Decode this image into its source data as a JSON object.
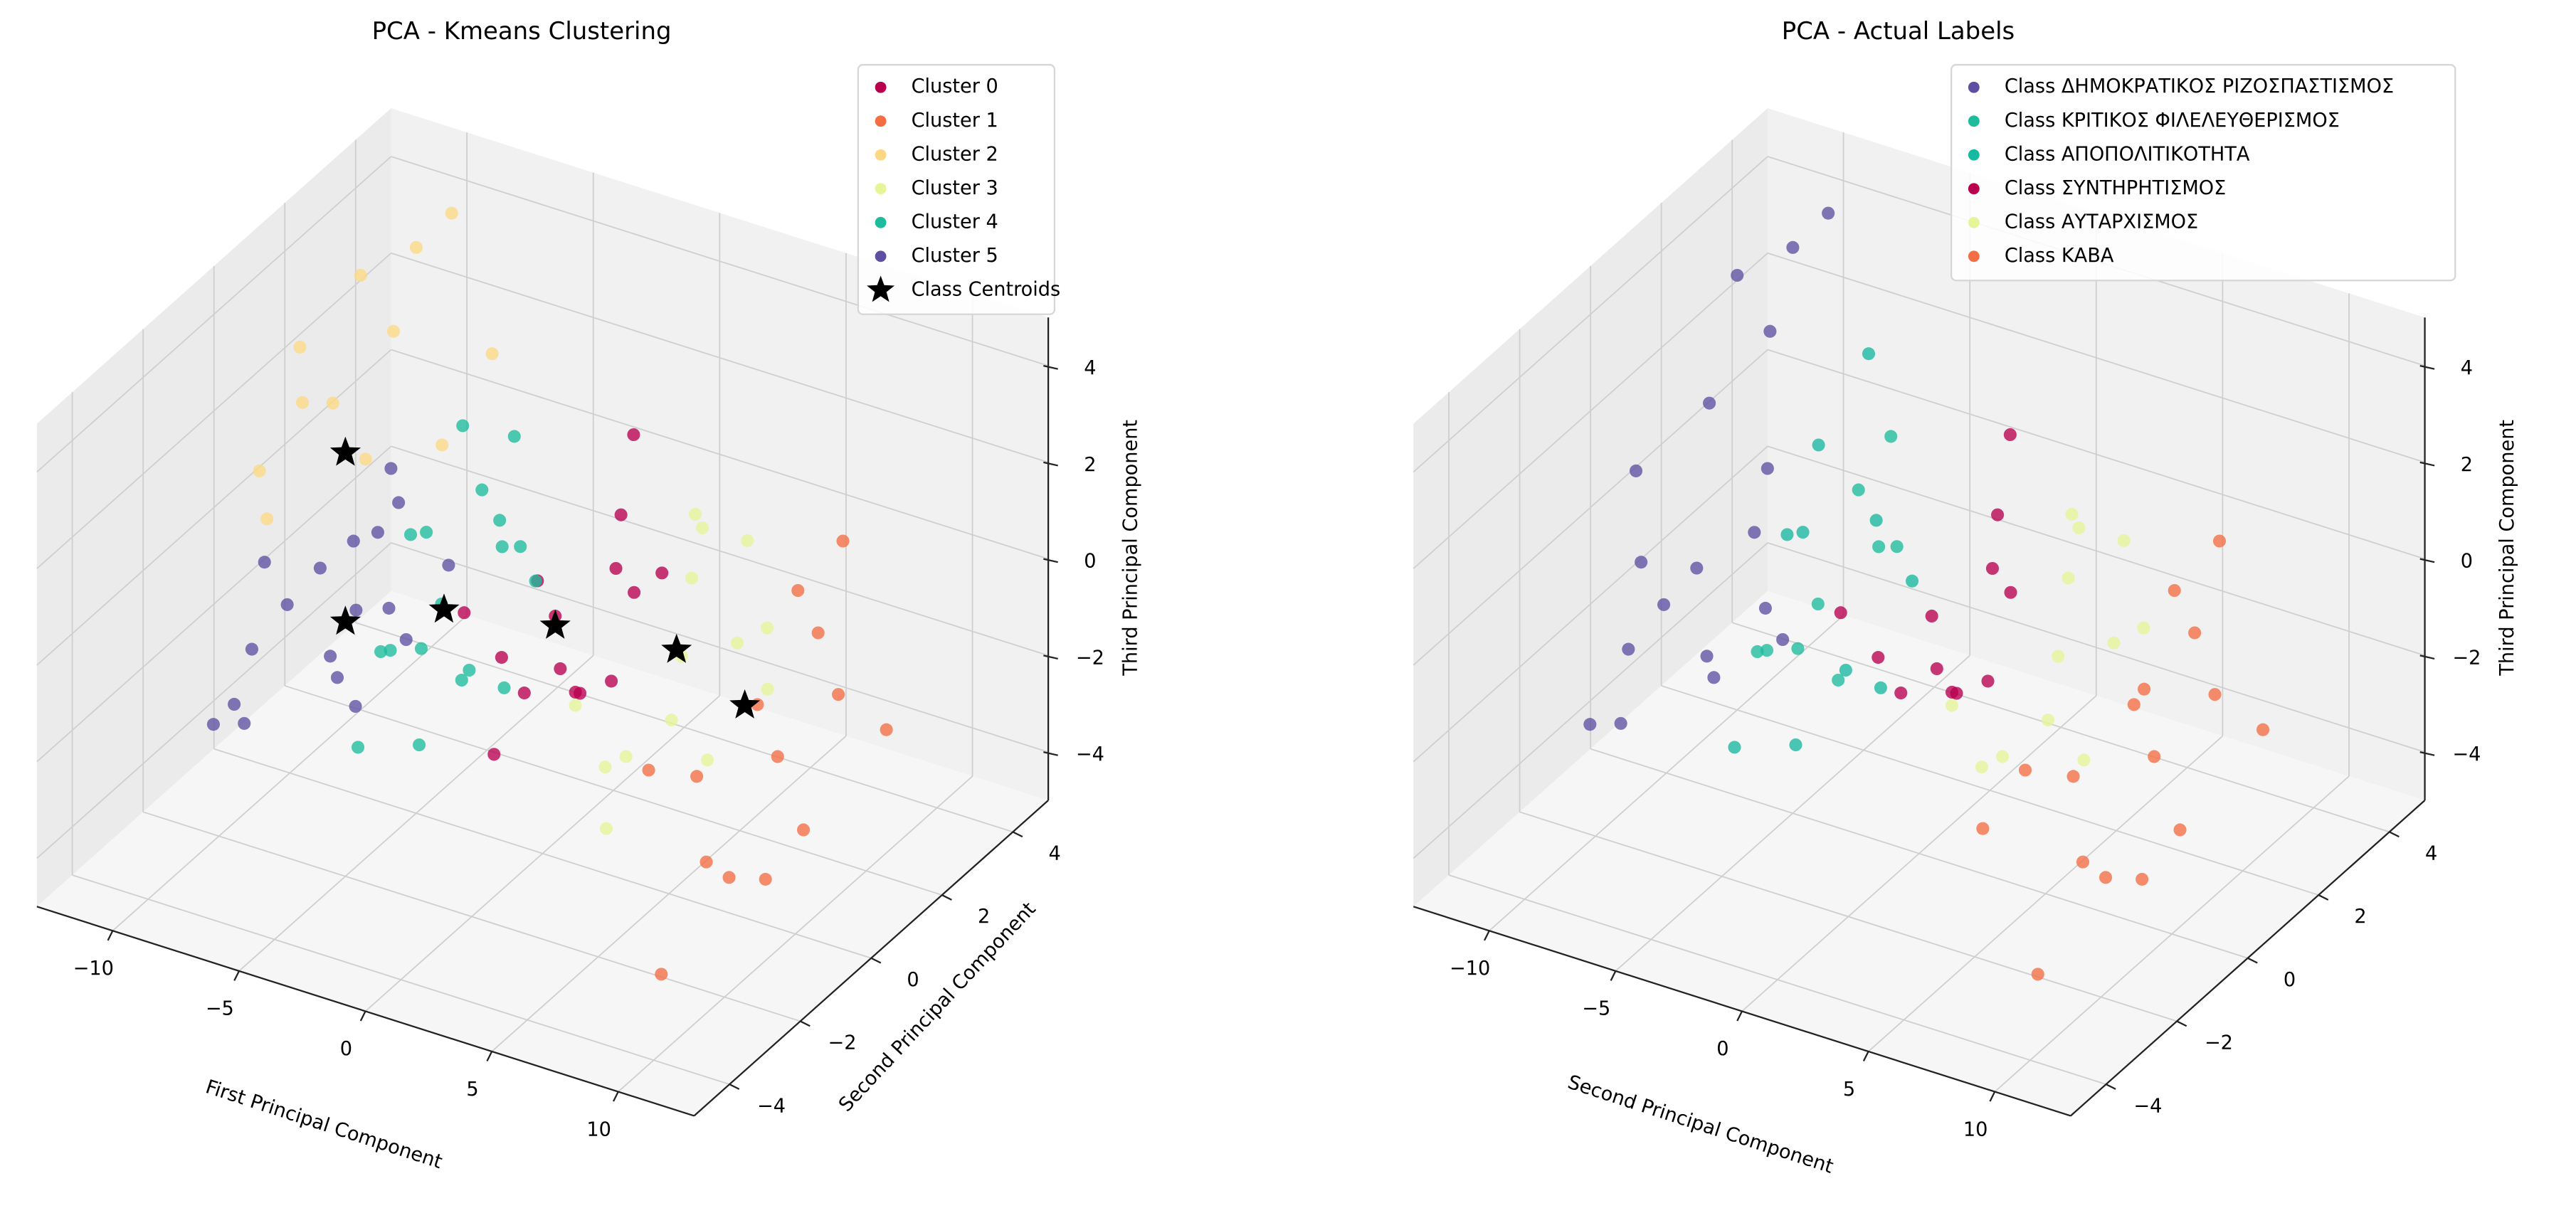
{
  "chart_data": [
    {
      "type": "scatter3d",
      "title": "PCA - Kmeans Clustering",
      "xlabel": "First Principal Component",
      "ylabel": "Second Principal Component",
      "zlabel": "Third Principal Component",
      "xlim": [
        -13,
        13
      ],
      "ylim": [
        -5,
        5
      ],
      "zlim": [
        -5,
        5
      ],
      "xticks": [
        -10,
        -5,
        0,
        5,
        10
      ],
      "yticks": [
        -4,
        -2,
        0,
        2,
        4
      ],
      "zticks": [
        -4,
        -2,
        0,
        2,
        4
      ],
      "grid": true,
      "legend_position": "top-right",
      "series": [
        {
          "name": "Cluster 0",
          "color": "#b8004f",
          "points": [
            [
              0.5,
              0,
              0
            ],
            [
              1.5,
              1,
              0.5
            ],
            [
              -0.5,
              -0.8,
              -0.5
            ],
            [
              2,
              -0.5,
              -1
            ],
            [
              1,
              1.5,
              1.2
            ],
            [
              0,
              0.5,
              -1.5
            ],
            [
              2.5,
              0.8,
              0.3
            ],
            [
              -1,
              -1.5,
              0.8
            ],
            [
              1.8,
              -1.8,
              -0.2
            ],
            [
              0.8,
              2,
              2.5
            ],
            [
              3,
              -0.2,
              -0.8
            ],
            [
              -0.2,
              1.2,
              -2.5
            ],
            [
              1.2,
              -1,
              1.5
            ],
            [
              2.2,
              1.8,
              0
            ],
            [
              -1.5,
              -0.3,
              -3
            ]
          ]
        },
        {
          "name": "Cluster 1",
          "color": "#f46d43",
          "points": [
            [
              8.5,
              0,
              -0.5
            ],
            [
              9.5,
              1,
              0.5
            ],
            [
              7.5,
              -1,
              -1.5
            ],
            [
              10,
              -0.5,
              -1
            ],
            [
              8,
              1.5,
              0.8
            ],
            [
              9,
              -1.8,
              -2.5
            ],
            [
              11,
              0.5,
              -0.2
            ],
            [
              7,
              -2,
              -0.8
            ],
            [
              8.8,
              2.2,
              1.5
            ],
            [
              10.5,
              -1.2,
              -3
            ],
            [
              9.2,
              0.8,
              -3.5
            ],
            [
              7.8,
              -0.3,
              -4
            ],
            [
              11.5,
              1.5,
              -1.5
            ],
            [
              8.2,
              -2.5,
              -4.5
            ]
          ]
        },
        {
          "name": "Cluster 2",
          "color": "#fdd884",
          "points": [
            [
              -9,
              0.5,
              2.5
            ],
            [
              -8,
              1.5,
              3.5
            ],
            [
              -10.5,
              -0.5,
              1.5
            ],
            [
              -7,
              0,
              2
            ],
            [
              -8.5,
              2.5,
              4.5
            ],
            [
              -11,
              1,
              3
            ],
            [
              -6.5,
              1.8,
              1.2
            ],
            [
              -9.5,
              -1,
              1
            ],
            [
              -7.8,
              3,
              5
            ],
            [
              -5.5,
              2.5,
              2.8
            ],
            [
              -10,
              2,
              4
            ],
            [
              -8.8,
              -0.5,
              3.2
            ]
          ]
        },
        {
          "name": "Cluster 3",
          "color": "#e6f598",
          "points": [
            [
              5.5,
              0,
              0
            ],
            [
              4.5,
              1,
              0.8
            ],
            [
              6.5,
              -1,
              -0.5
            ],
            [
              5,
              -1.8,
              -1.2
            ],
            [
              6,
              1.5,
              1.5
            ],
            [
              4,
              -0.5,
              -2
            ],
            [
              7,
              0.5,
              0.2
            ],
            [
              5.8,
              2.2,
              -0.8
            ],
            [
              4.8,
              -2.5,
              0.5
            ],
            [
              6.8,
              -0.2,
              -1.8
            ],
            [
              3.8,
              1.8,
              1.2
            ],
            [
              5.2,
              0.6,
              2.5
            ],
            [
              7.5,
              1,
              -1
            ],
            [
              4.2,
              -1.2,
              -3
            ]
          ]
        },
        {
          "name": "Cluster 4",
          "color": "#1cbc9c",
          "points": [
            [
              -4,
              0,
              -0.5
            ],
            [
              -3,
              1,
              0.2
            ],
            [
              -5,
              -1,
              -1
            ],
            [
              -4.5,
              1.5,
              0.8
            ],
            [
              -2.5,
              -0.5,
              -1.5
            ],
            [
              -3.5,
              -1.8,
              -0.2
            ],
            [
              -5.5,
              0.5,
              -2
            ],
            [
              -2,
              0.8,
              0.5
            ],
            [
              -4.2,
              2.2,
              1.5
            ],
            [
              -3.2,
              -1.2,
              -2.5
            ],
            [
              -6,
              1,
              0
            ],
            [
              -1.5,
              -1,
              -0.8
            ],
            [
              -4.8,
              -0.3,
              1
            ],
            [
              -2.8,
              1.8,
              -1
            ],
            [
              -3.8,
              -2.5,
              -1.8
            ],
            [
              -5.2,
              2.5,
              -0.6
            ],
            [
              -1.8,
              0.2,
              -2
            ],
            [
              -4,
              0.6,
              2.8
            ]
          ]
        },
        {
          "name": "Cluster 5",
          "color": "#5e4fa2",
          "points": [
            [
              -9.5,
              0.5,
              -1
            ],
            [
              -8.2,
              1.2,
              -0.5
            ],
            [
              -7,
              -0.8,
              -2
            ],
            [
              -10.1,
              -1,
              -1.8
            ],
            [
              -8.8,
              2,
              0.2
            ],
            [
              -6.5,
              0.3,
              -1.2
            ],
            [
              -9,
              -2,
              -2.5
            ],
            [
              -7.5,
              1.5,
              -2.8
            ],
            [
              -11,
              0,
              -0.8
            ],
            [
              -8,
              -1.5,
              -0.2
            ],
            [
              -6.8,
              2.2,
              -1.6
            ],
            [
              -9.8,
              1,
              -3.2
            ],
            [
              -7.2,
              -0.2,
              0.4
            ],
            [
              -10.5,
              -1.8,
              -2.9
            ],
            [
              -8.5,
              0.8,
              -1.9
            ],
            [
              -6,
              -1,
              -2.3
            ],
            [
              -9.2,
              2.5,
              -0.9
            ],
            [
              -11.5,
              -0.5,
              -3.5
            ]
          ]
        }
      ],
      "centroids": {
        "name": "Class Centroids",
        "color": "#000000",
        "points": [
          [
            0.5,
            0,
            -0.2
          ],
          [
            8,
            0,
            -0.6
          ],
          [
            -7.8,
            0,
            2
          ],
          [
            5.3,
            0,
            0.1
          ],
          [
            -3.9,
            0,
            -0.6
          ],
          [
            -7.8,
            0,
            -1.5
          ]
        ]
      }
    },
    {
      "type": "scatter3d",
      "title": "PCA - Actual Labels",
      "xlabel": "Second Principal Component",
      "ylabel": "",
      "zlabel": "Third Principal Component",
      "xlim": [
        -13,
        13
      ],
      "ylim": [
        -5,
        5
      ],
      "zlim": [
        -5,
        5
      ],
      "xticks": [
        -10,
        -5,
        0,
        5,
        10
      ],
      "yticks": [
        -4,
        -2,
        0,
        2,
        4
      ],
      "zticks": [
        -4,
        -2,
        0,
        2,
        4
      ],
      "grid": true,
      "legend_position": "top-right",
      "series": [
        {
          "name": "Class ΔΗΜΟΚΡΑΤΙΚΟΣ ΡΙΖΟΣΠΑΣΤΙΣΜΟΣ",
          "color": "#5e4fa2",
          "points": [
            [
              -9.5,
              0.5,
              -1
            ],
            [
              -8.2,
              1.2,
              -0.5
            ],
            [
              -7,
              -0.8,
              -2
            ],
            [
              -10.1,
              -1,
              -1.8
            ],
            [
              -8.8,
              2,
              0.2
            ],
            [
              -6.5,
              0.3,
              -1.2
            ],
            [
              -9,
              -2,
              -2.5
            ],
            [
              -7.5,
              1.5,
              -2.8
            ],
            [
              -11,
              0,
              -0.8
            ],
            [
              -8,
              -1.5,
              -0.2
            ],
            [
              -9.8,
              1,
              -3.2
            ],
            [
              -10.5,
              -1.8,
              -2.9
            ],
            [
              -9,
              0.5,
              2.5
            ],
            [
              -8,
              1.5,
              3.5
            ],
            [
              -10.5,
              -0.5,
              1.5
            ],
            [
              -8.5,
              2.5,
              4.5
            ],
            [
              -7.8,
              3,
              5
            ],
            [
              -10,
              2,
              4
            ]
          ]
        },
        {
          "name": "Class ΚΡΙΤΙΚΟΣ ΦΙΛΕΛΕΥΘΕΡΙΣΜΟΣ",
          "color": "#1cbc9c",
          "points": [
            [
              -4,
              0,
              -0.5
            ],
            [
              -3,
              1,
              0.2
            ],
            [
              -5,
              -1,
              -1
            ],
            [
              -4.5,
              1.5,
              0.8
            ],
            [
              -2.5,
              -0.5,
              -1.5
            ],
            [
              -3.5,
              -1.8,
              -0.2
            ],
            [
              -5.5,
              0.5,
              -2
            ],
            [
              -2,
              0.8,
              0.5
            ],
            [
              -4.2,
              2.2,
              1.5
            ]
          ]
        },
        {
          "name": "Class ΑΠΟΠΟΛΙΤΙΚΟΤΗΤΑ",
          "color": "#17b9a0",
          "points": [
            [
              -3.2,
              -1.2,
              -2.5
            ],
            [
              -6,
              1,
              0
            ],
            [
              -1.5,
              -1,
              -0.8
            ],
            [
              -4.8,
              -0.3,
              1
            ],
            [
              -2.8,
              1.8,
              -1
            ],
            [
              -3.8,
              -2.5,
              -1.8
            ],
            [
              -5.2,
              2.5,
              -0.6
            ],
            [
              -1.8,
              0.2,
              -2
            ],
            [
              -6.5,
              1.8,
              1.2
            ],
            [
              -5.5,
              2.5,
              2.8
            ]
          ]
        },
        {
          "name": "Class ΣΥΝΤΗΡΗΤΙΣΜΟΣ",
          "color": "#b8004f",
          "points": [
            [
              0.5,
              0,
              0
            ],
            [
              1.5,
              1,
              0.5
            ],
            [
              -0.5,
              -0.8,
              -0.5
            ],
            [
              2,
              -0.5,
              -1
            ],
            [
              1,
              1.5,
              1.2
            ],
            [
              0,
              0.5,
              -1.5
            ],
            [
              2.5,
              0.8,
              0.3
            ],
            [
              -1,
              -1.5,
              0.8
            ],
            [
              1.8,
              -1.8,
              -0.2
            ],
            [
              0.8,
              2,
              2.5
            ],
            [
              3,
              -0.2,
              -0.8
            ],
            [
              -0.2,
              1.2,
              -2.5
            ]
          ]
        },
        {
          "name": "Class ΑΥΤΑΡΧΙΣΜΟΣ",
          "color": "#e6f598",
          "points": [
            [
              5.5,
              0,
              0
            ],
            [
              4.5,
              1,
              0.8
            ],
            [
              6.5,
              -1,
              -0.5
            ],
            [
              5,
              -1.8,
              -1.2
            ],
            [
              6,
              1.5,
              1.5
            ],
            [
              4,
              -0.5,
              -2
            ],
            [
              7,
              0.5,
              0.2
            ],
            [
              5.8,
              2.2,
              -0.8
            ],
            [
              4.8,
              -2.5,
              0.5
            ],
            [
              6.8,
              -0.2,
              -1.8
            ],
            [
              3.8,
              1.8,
              1.2
            ],
            [
              5.2,
              0.6,
              2.5
            ]
          ]
        },
        {
          "name": "Class ΚΑΒΑ",
          "color": "#f46d43",
          "points": [
            [
              8.5,
              0,
              -0.5
            ],
            [
              9.5,
              1,
              0.5
            ],
            [
              7.5,
              -1,
              -1.5
            ],
            [
              10,
              -0.5,
              -1
            ],
            [
              8,
              1.5,
              0.8
            ],
            [
              9,
              -1.8,
              -2.5
            ],
            [
              11,
              0.5,
              -0.2
            ],
            [
              7,
              -2,
              -0.8
            ],
            [
              8.8,
              2.2,
              1.5
            ],
            [
              10.5,
              -1.2,
              -3
            ],
            [
              9.2,
              0.8,
              -3.5
            ],
            [
              7.8,
              -0.3,
              -4
            ],
            [
              11.5,
              1.5,
              -1.5
            ],
            [
              8.2,
              -2.5,
              -4.5
            ],
            [
              7.5,
              1,
              -1
            ],
            [
              4.2,
              -1.2,
              -3
            ]
          ]
        }
      ]
    }
  ]
}
